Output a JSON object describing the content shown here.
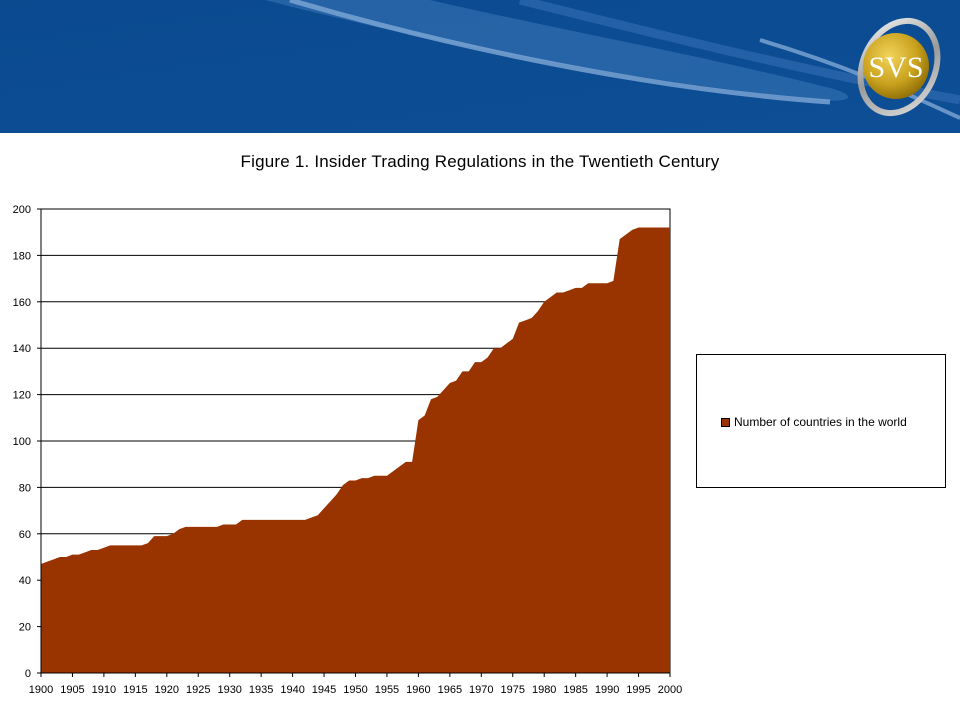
{
  "brand": {
    "logo_text": "SVS"
  },
  "colors": {
    "banner": "#0b4a8f",
    "area": "#993300"
  },
  "chart_data": {
    "type": "area",
    "title": "Figure 1. Insider Trading Regulations in the Twentieth Century",
    "xlabel": "",
    "ylabel": "",
    "xlim": [
      1900,
      2000
    ],
    "ylim": [
      0,
      200
    ],
    "y_ticks": [
      0,
      20,
      40,
      60,
      80,
      100,
      120,
      140,
      160,
      180,
      200
    ],
    "x_ticks": [
      1900,
      1905,
      1910,
      1915,
      1920,
      1925,
      1930,
      1935,
      1940,
      1945,
      1950,
      1955,
      1960,
      1965,
      1970,
      1975,
      1980,
      1985,
      1990,
      1995,
      2000
    ],
    "grid": true,
    "legend_position": "right",
    "series": [
      {
        "name": "Number of countries in the world",
        "color": "#993300",
        "x": [
          1900,
          1901,
          1902,
          1903,
          1904,
          1905,
          1906,
          1907,
          1908,
          1909,
          1910,
          1911,
          1912,
          1913,
          1914,
          1915,
          1916,
          1917,
          1918,
          1919,
          1920,
          1921,
          1922,
          1923,
          1924,
          1925,
          1926,
          1927,
          1928,
          1929,
          1930,
          1931,
          1932,
          1933,
          1934,
          1935,
          1936,
          1937,
          1938,
          1939,
          1940,
          1941,
          1942,
          1943,
          1944,
          1945,
          1946,
          1947,
          1948,
          1949,
          1950,
          1951,
          1952,
          1953,
          1954,
          1955,
          1956,
          1957,
          1958,
          1959,
          1960,
          1961,
          1962,
          1963,
          1964,
          1965,
          1966,
          1967,
          1968,
          1969,
          1970,
          1971,
          1972,
          1973,
          1974,
          1975,
          1976,
          1977,
          1978,
          1979,
          1980,
          1981,
          1982,
          1983,
          1984,
          1985,
          1986,
          1987,
          1988,
          1989,
          1990,
          1991,
          1992,
          1993,
          1994,
          1995,
          1996,
          1997,
          1998,
          1999,
          2000
        ],
        "values": [
          47,
          48,
          49,
          50,
          50,
          51,
          51,
          52,
          53,
          53,
          54,
          55,
          55,
          55,
          55,
          55,
          55,
          56,
          59,
          59,
          59,
          60,
          62,
          63,
          63,
          63,
          63,
          63,
          63,
          64,
          64,
          64,
          66,
          66,
          66,
          66,
          66,
          66,
          66,
          66,
          66,
          66,
          66,
          67,
          68,
          71,
          74,
          77,
          81,
          83,
          83,
          84,
          84,
          85,
          85,
          85,
          87,
          89,
          91,
          91,
          109,
          111,
          118,
          119,
          122,
          125,
          126,
          130,
          130,
          134,
          134,
          136,
          140,
          140,
          142,
          144,
          151,
          152,
          153,
          156,
          160,
          162,
          164,
          164,
          165,
          166,
          166,
          168,
          168,
          168,
          168,
          169,
          187,
          189,
          191,
          192,
          192,
          192,
          192,
          192,
          192
        ]
      }
    ]
  }
}
